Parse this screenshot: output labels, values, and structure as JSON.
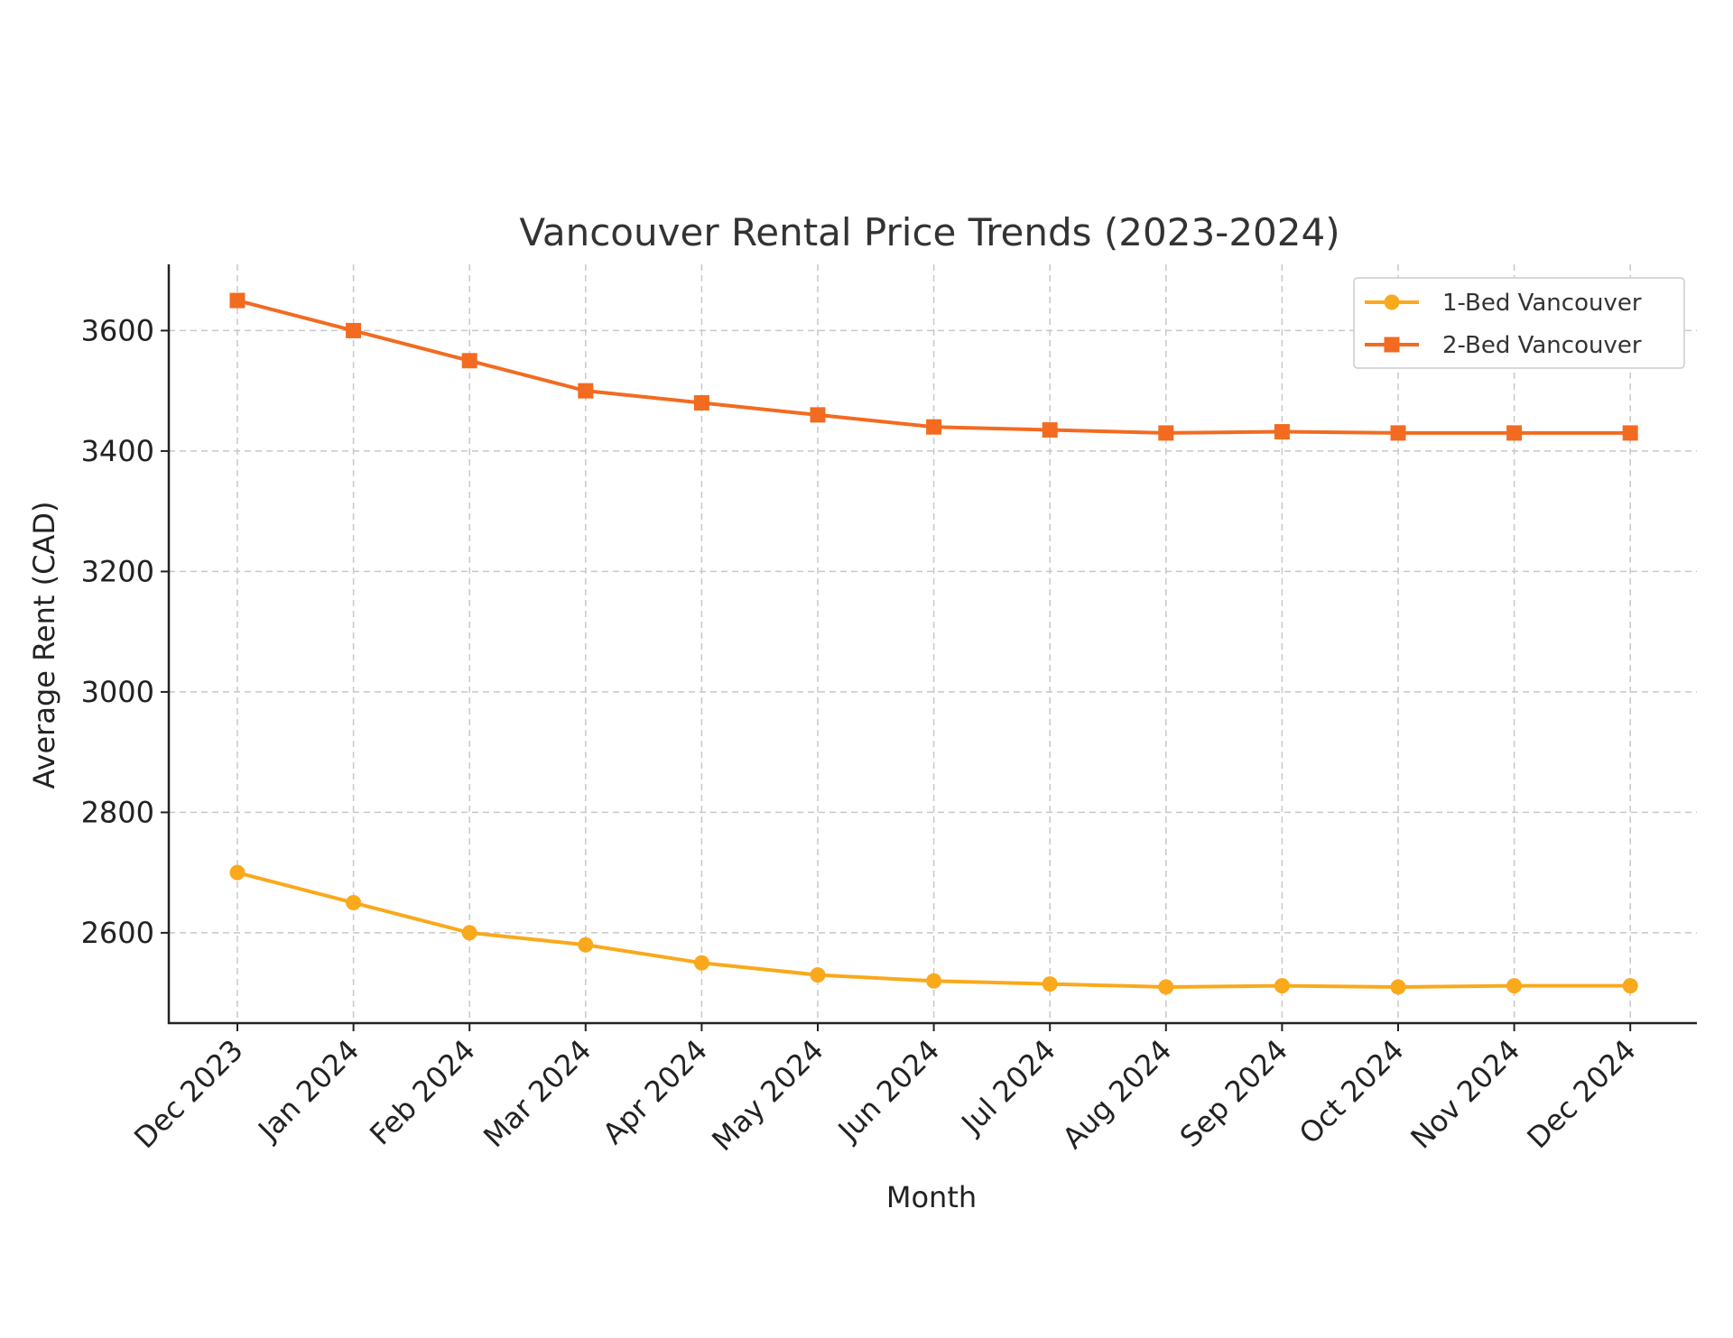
{
  "chart_data": {
    "type": "line",
    "title": "Vancouver Rental Price Trends (2023-2024)",
    "xlabel": "Month",
    "ylabel": "Average Rent (CAD)",
    "categories": [
      "Dec 2023",
      "Jan 2024",
      "Feb 2024",
      "Mar 2024",
      "Apr 2024",
      "May 2024",
      "Jun 2024",
      "Jul 2024",
      "Aug 2024",
      "Sep 2024",
      "Oct 2024",
      "Nov 2024",
      "Dec 2024"
    ],
    "ylim": [
      2450,
      3710
    ],
    "yticks": [
      2600,
      2800,
      3000,
      3200,
      3400,
      3600
    ],
    "grid": true,
    "legend_position": "top-right",
    "series": [
      {
        "name": "1-Bed Vancouver",
        "color": "#F9A91B",
        "marker": "circle",
        "values": [
          2700,
          2650,
          2600,
          2580,
          2550,
          2530,
          2520,
          2515,
          2510,
          2512,
          2510,
          2512,
          2512
        ]
      },
      {
        "name": "2-Bed Vancouver",
        "color": "#F26B21",
        "marker": "square",
        "values": [
          3650,
          3600,
          3550,
          3500,
          3480,
          3460,
          3440,
          3435,
          3430,
          3432,
          3430,
          3430,
          3430
        ]
      }
    ]
  }
}
